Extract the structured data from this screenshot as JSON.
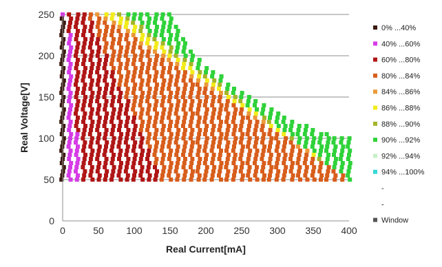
{
  "chart_data": {
    "type": "scatter",
    "title": "",
    "xlabel": "Real Current[mA]",
    "ylabel": "Real Voltage[V]",
    "xlim": [
      0,
      400
    ],
    "ylim": [
      0,
      250
    ],
    "xticks": [
      "0",
      "50",
      "100",
      "150",
      "200",
      "250",
      "300",
      "350",
      "400"
    ],
    "yticks": [
      "0",
      "50",
      "100",
      "150",
      "200",
      "250"
    ],
    "grid": "horizontal",
    "legend_position": "right",
    "legend": [
      {
        "label": "0% ...40%",
        "color": "#3a1a10"
      },
      {
        "label": "40% ...60%",
        "color": "#d63ce6"
      },
      {
        "label": "60% ...80%",
        "color": "#b01616"
      },
      {
        "label": "80% ...84%",
        "color": "#d85e1c"
      },
      {
        "label": "84% ...86%",
        "color": "#eb9a3a"
      },
      {
        "label": "86% ...88%",
        "color": "#f2ec1c"
      },
      {
        "label": "88% ...90%",
        "color": "#a4b42a"
      },
      {
        "label": "90% ...92%",
        "color": "#2fd23a"
      },
      {
        "label": "92% ...94%",
        "color": "#c8f0c8"
      },
      {
        "label": "94% ...100%",
        "color": "#34d8d8"
      },
      {
        "label": "-",
        "color": ""
      },
      {
        "label": "-",
        "color": ""
      },
      {
        "label": "Window",
        "color": "#555555"
      }
    ],
    "grid_x": [
      0,
      10,
      20,
      30,
      40,
      50,
      60,
      70,
      80,
      90,
      100,
      110,
      120,
      130,
      140,
      150,
      160,
      170,
      180,
      190,
      200,
      210,
      220,
      230,
      240,
      250,
      260,
      270,
      280,
      290,
      300,
      310,
      320,
      330,
      340,
      350,
      360,
      370,
      380,
      390,
      400
    ],
    "grid_y": [
      50,
      55,
      60,
      65,
      70,
      75,
      80,
      85,
      90,
      95,
      100,
      105,
      110,
      115,
      120,
      125,
      130,
      135,
      140,
      145,
      150,
      155,
      160,
      165,
      170,
      175,
      180,
      185,
      190,
      195,
      200,
      205,
      210,
      215,
      220,
      225,
      230,
      235,
      240,
      245,
      250
    ],
    "boundary": [
      {
        "x": 150,
        "y": 250
      },
      {
        "x": 160,
        "y": 235
      },
      {
        "x": 180,
        "y": 205
      },
      {
        "x": 200,
        "y": 185
      },
      {
        "x": 220,
        "y": 175
      },
      {
        "x": 240,
        "y": 160
      },
      {
        "x": 260,
        "y": 150
      },
      {
        "x": 280,
        "y": 140
      },
      {
        "x": 300,
        "y": 130
      },
      {
        "x": 320,
        "y": 120
      },
      {
        "x": 340,
        "y": 115
      },
      {
        "x": 360,
        "y": 108
      },
      {
        "x": 380,
        "y": 103
      },
      {
        "x": 400,
        "y": 100
      }
    ],
    "zone_reference_x": [
      0,
      10,
      40,
      80,
      130,
      150,
      170,
      210,
      250,
      300,
      400
    ],
    "zones": [
      {
        "legend_index": 0,
        "x_from_low": 0,
        "x_to_low": 5,
        "x_from_high": 0,
        "x_to_high": 0
      },
      {
        "legend_index": 1,
        "x_from_low": 5,
        "x_to_low": 25,
        "x_from_high": 0,
        "x_to_high": 8
      },
      {
        "legend_index": 2,
        "x_from_low": 25,
        "x_to_low": 140,
        "x_from_high": 8,
        "x_to_high": 35
      },
      {
        "legend_index": 3,
        "x_from_low": 140,
        "x_to_low": 400,
        "x_from_high": 35,
        "x_to_high": 48
      },
      {
        "legend_index": 4,
        "x_from_low": 400,
        "x_to_low": 400,
        "x_from_high": 48,
        "x_to_high": 58
      },
      {
        "legend_index": 5,
        "x_from_low": 400,
        "x_to_low": 400,
        "x_from_high": 58,
        "x_to_high": 76
      },
      {
        "legend_index": 6,
        "x_from_low": 400,
        "x_to_low": 400,
        "x_from_high": 76,
        "x_to_high": 88
      },
      {
        "legend_index": 7,
        "x_from_low": 400,
        "x_to_low": 400,
        "x_from_high": 88,
        "x_to_high": 400
      }
    ]
  }
}
